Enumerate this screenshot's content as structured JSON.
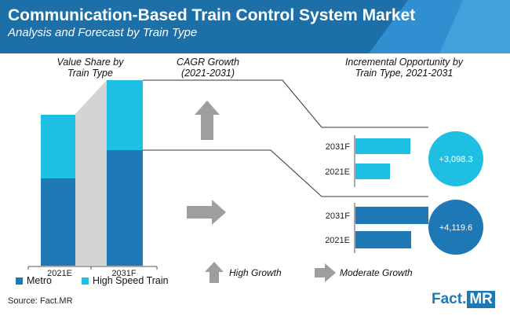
{
  "header": {
    "title": "Communication-Based Train Control System Market",
    "subtitle": "Analysis and Forecast by Train Type"
  },
  "colors": {
    "banner": "#1d6fa8",
    "banner_accent": "#2f8fd0",
    "metro": "#1e78b5",
    "high_speed": "#1fbfe3",
    "connector": "#d4d4d4",
    "arrow": "#9e9e9e",
    "line": "#333333"
  },
  "chart_data": {
    "type": "infographic",
    "value_share": {
      "header_line1": "Value Share by",
      "header_line2": "Train Type",
      "categories": [
        "2021E",
        "2031F"
      ],
      "series": [
        {
          "name": "Metro",
          "values": [
            55,
            63
          ]
        },
        {
          "name": "High Speed Train",
          "values": [
            45,
            37
          ]
        }
      ],
      "bar_heights": [
        55,
        100
      ]
    },
    "cagr": {
      "header_line1": "CAGR Growth",
      "header_line2": "(2021-2031)"
    },
    "incremental": {
      "header_line1": "Incremental Opportunity by",
      "header_line2": "Train Type, 2021-2031",
      "groups": [
        {
          "series": "High Speed Train",
          "opportunity": "+3,098.3",
          "bars": [
            {
              "label": "2031F",
              "value": 78
            },
            {
              "label": "2021E",
              "value": 48
            }
          ]
        },
        {
          "series": "Metro",
          "opportunity": "+4,119.6",
          "bars": [
            {
              "label": "2031F",
              "value": 100
            },
            {
              "label": "2021E",
              "value": 78
            }
          ]
        }
      ]
    },
    "growth_legend": {
      "high": "High Growth",
      "moderate": "Moderate Growth"
    }
  },
  "legend": {
    "metro": "Metro",
    "high_speed": "High Speed Train"
  },
  "footer": {
    "source": "Source: Fact.MR",
    "logo_a": "Fact.",
    "logo_b": "MR"
  }
}
